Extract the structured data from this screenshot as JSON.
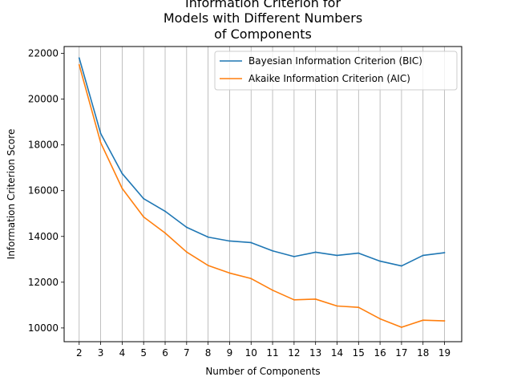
{
  "chart_data": {
    "type": "line",
    "title_lines": [
      "Information Criterion for",
      "Models with Different Numbers",
      "of Components"
    ],
    "xlabel": "Number of Components",
    "ylabel": "Information Criterion Score",
    "x": [
      2,
      3,
      4,
      5,
      6,
      7,
      8,
      9,
      10,
      11,
      12,
      13,
      14,
      15,
      16,
      17,
      18,
      19
    ],
    "xlim": [
      1.3,
      19.8
    ],
    "ylim": [
      9400,
      22300
    ],
    "yticks": [
      10000,
      12000,
      14000,
      16000,
      18000,
      20000,
      22000
    ],
    "ytick_labels": [
      "10000",
      "12000",
      "14000",
      "16000",
      "18000",
      "20000",
      "22000"
    ],
    "grid": "vertical",
    "legend_position": "top-right",
    "series": [
      {
        "name": "Bayesian Information Criterion (BIC)",
        "color": "#1f77b4",
        "values": [
          21800,
          18500,
          16750,
          15650,
          15100,
          14400,
          13970,
          13800,
          13730,
          13370,
          13120,
          13310,
          13170,
          13270,
          12920,
          12710,
          13170,
          13290
        ]
      },
      {
        "name": "Akaike Information Criterion (AIC)",
        "color": "#ff7f0e",
        "values": [
          21500,
          18100,
          16100,
          14850,
          14150,
          13320,
          12730,
          12400,
          12160,
          11650,
          11230,
          11260,
          10960,
          10900,
          10400,
          10030,
          10340,
          10310
        ]
      }
    ]
  }
}
